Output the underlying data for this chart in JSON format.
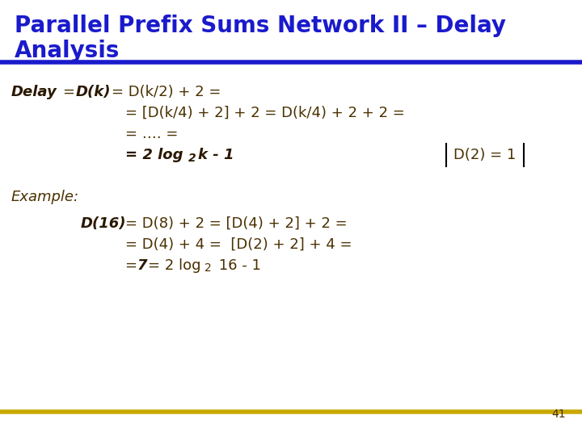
{
  "title_line1": "Parallel Prefix Sums Network II – Delay",
  "title_line2": "Analysis",
  "title_color": "#1a1acc",
  "title_fontsize": 20,
  "bg_color": "#ffffff",
  "header_line_color": "#1a1acc",
  "footer_line_color": "#c8a800",
  "slide_number": "41",
  "text_color": "#4a3000",
  "bold_color": "#2a1800",
  "fontsize": 13,
  "sub_fontsize": 10
}
